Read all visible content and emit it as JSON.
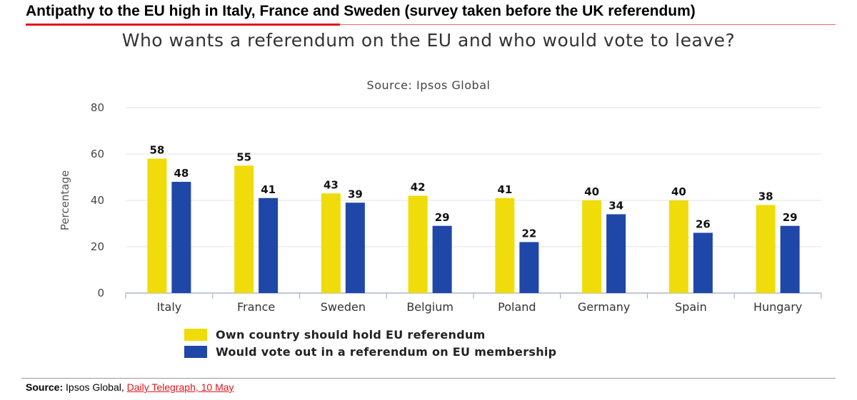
{
  "headline": "Antipathy to the EU high in Italy, France and Sweden (survey taken before the UK referendum)",
  "chart_data": {
    "type": "bar",
    "title": "Who wants a referendum on the EU and who would vote to leave?",
    "subtitle": "Source: Ipsos Global",
    "ylabel": "Percentage",
    "xlabel": "",
    "ylim": [
      0,
      80
    ],
    "yticks": [
      0,
      20,
      40,
      60,
      80
    ],
    "grid": true,
    "legend_position": "bottom-left",
    "categories": [
      "Italy",
      "France",
      "Sweden",
      "Belgium",
      "Poland",
      "Germany",
      "Spain",
      "Hungary"
    ],
    "series": [
      {
        "name": "Own country should hold EU referendum",
        "color": "#f0dc0a",
        "values": [
          58,
          55,
          43,
          42,
          41,
          40,
          40,
          38
        ]
      },
      {
        "name": "Would vote out in a referendum on EU membership",
        "color": "#1f47a8",
        "values": [
          48,
          41,
          39,
          29,
          22,
          34,
          26,
          29
        ]
      }
    ]
  },
  "footer": {
    "source_label": "Source:",
    "source_text": " Ipsos Global, ",
    "link_text": "Daily Telegraph, 10 May"
  }
}
